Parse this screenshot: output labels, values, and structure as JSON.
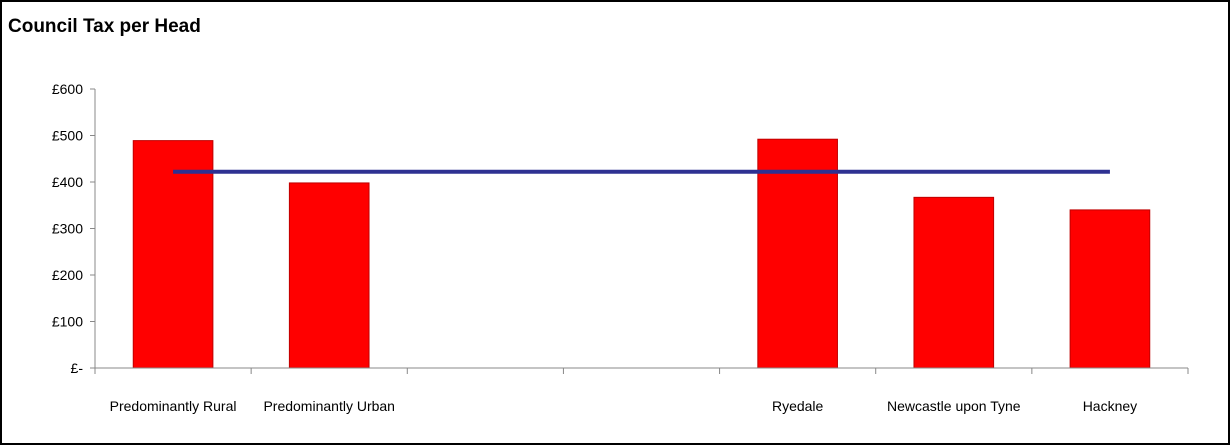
{
  "chart_data": {
    "type": "bar",
    "title": "Council Tax per Head",
    "xlabel": "",
    "ylabel": "",
    "categories": [
      "Predominantly Rural",
      "Predominantly Urban",
      "",
      "",
      "Ryedale",
      "Newcastle upon Tyne",
      "Hackney"
    ],
    "series": [
      {
        "values": [
          489,
          398,
          null,
          null,
          492,
          367,
          340
        ],
        "type": "bar"
      },
      {
        "values": [
          422,
          422,
          422,
          422,
          422,
          422,
          422
        ],
        "type": "line"
      }
    ],
    "ylim": [
      0,
      600
    ],
    "yticks": [
      0,
      100,
      200,
      300,
      400,
      500,
      600
    ],
    "ytick_labels": [
      "£-",
      "£100",
      "£200",
      "£300",
      "£400",
      "£500",
      "£600"
    ],
    "grid": false,
    "legend": "none",
    "colors": {
      "bar": "#ff0000",
      "bar_edge": "#c00000",
      "line": "#2e3192",
      "axis": "#888888"
    }
  }
}
